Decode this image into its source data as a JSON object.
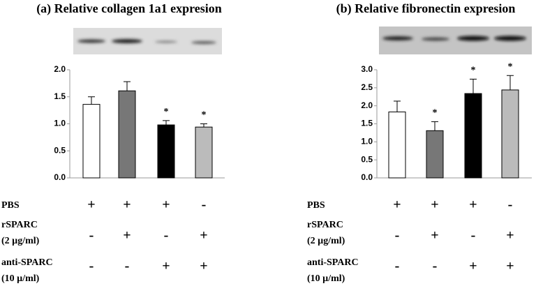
{
  "chart_data": [
    {
      "type": "bar",
      "title": "(a) Relative collagen 1a1 expresion",
      "categories": [
        null,
        null,
        null,
        null
      ],
      "values": [
        1.36,
        1.61,
        0.98,
        0.94
      ],
      "errors": [
        0.14,
        0.17,
        0.08,
        0.06
      ],
      "colors": [
        "#ffffff",
        "#777777",
        "#000000",
        "#bbbbbb"
      ],
      "annotations": [
        null,
        null,
        "*",
        "*"
      ],
      "ylim": [
        0,
        2
      ],
      "yticks": [
        {
          "value": 0,
          "label": "0.0"
        },
        0.5,
        {
          "value": 1,
          "label": "1.0"
        },
        1.5,
        {
          "value": 2,
          "label": "2.0"
        }
      ],
      "treatments": [
        {
          "label": [
            "PBS"
          ],
          "signs": [
            "+",
            "+",
            "+",
            "-"
          ]
        },
        {
          "label": [
            "rSPARC",
            "(2 µg/ml)"
          ],
          "signs": [
            "-",
            "+",
            "-",
            "+"
          ]
        },
        {
          "label": [
            "anti-SPARC",
            "(10 µ/ml)"
          ],
          "signs": [
            "-",
            "-",
            "+",
            "+"
          ]
        }
      ]
    },
    {
      "type": "bar",
      "title": "(b) Relative fibronectin expresion",
      "categories": [
        null,
        null,
        null,
        null
      ],
      "values": [
        1.83,
        1.31,
        2.34,
        2.44
      ],
      "errors": [
        0.3,
        0.25,
        0.4,
        0.4
      ],
      "colors": [
        "#ffffff",
        "#777777",
        "#000000",
        "#bbbbbb"
      ],
      "annotations": [
        null,
        "*",
        "*",
        "*"
      ],
      "ylim": [
        0,
        3
      ],
      "yticks": [
        {
          "value": 0,
          "label": "0.0"
        },
        0.5,
        {
          "value": 1,
          "label": "1.0"
        },
        1.5,
        {
          "value": 2,
          "label": "2.0"
        },
        2.5,
        {
          "value": 3,
          "label": "3.0"
        }
      ],
      "treatments": [
        {
          "label": [
            "PBS"
          ],
          "signs": [
            "+",
            "+",
            "+",
            "-"
          ]
        },
        {
          "label": [
            "rSPARC",
            "(2 µg/ml)"
          ],
          "signs": [
            "-",
            "+",
            "-",
            "+"
          ]
        },
        {
          "label": [
            "anti-SPARC",
            "(10 µ/ml)"
          ],
          "signs": [
            "-",
            "-",
            "+",
            "+"
          ]
        }
      ]
    }
  ]
}
